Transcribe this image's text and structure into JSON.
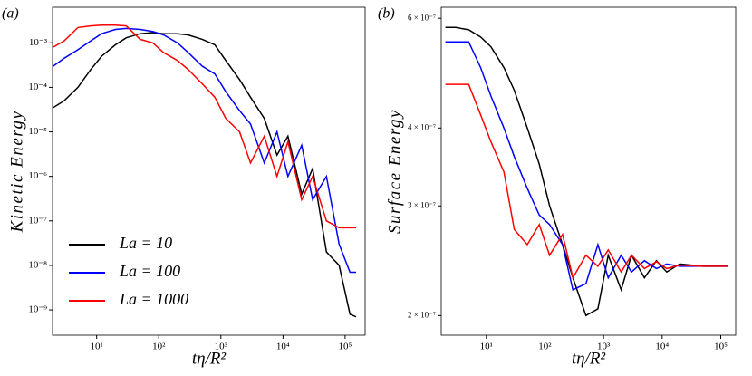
{
  "chart_data": [
    {
      "type": "line",
      "panel_label": "(a)",
      "x_label": "tη/R²",
      "y_label": "Kinetic Energy",
      "xscale": "log",
      "yscale": "log",
      "legend": "lower left",
      "xlim": [
        1.95,
        210000
      ],
      "ylim": [
        2.7e-10,
        0.0063
      ],
      "xticks": [
        {
          "value": 10,
          "label": "10¹"
        },
        {
          "value": 100,
          "label": "10²"
        },
        {
          "value": 1000,
          "label": "10³"
        },
        {
          "value": 10000,
          "label": "10⁴"
        },
        {
          "value": 100000,
          "label": "10⁵"
        }
      ],
      "yticks": [
        {
          "value": 1e-09,
          "label": "10⁻⁹"
        },
        {
          "value": 1e-08,
          "label": "10⁻⁸"
        },
        {
          "value": 1e-07,
          "label": "10⁻⁷"
        },
        {
          "value": 1e-06,
          "label": "10⁻⁶"
        },
        {
          "value": 1e-05,
          "label": "10⁻⁵"
        },
        {
          "value": 0.0001,
          "label": "10⁻⁴"
        },
        {
          "value": 0.001,
          "label": "10⁻³"
        }
      ],
      "x": [
        2,
        3,
        5,
        8,
        12,
        20,
        30,
        50,
        80,
        120,
        200,
        300,
        500,
        800,
        1200,
        2000,
        3000,
        5000,
        8000,
        12000,
        20000,
        30000,
        50000,
        80000,
        120000,
        150000
      ],
      "series": [
        {
          "name": "La = 10",
          "color": "#000000",
          "values": [
            3.5e-05,
            5e-05,
            0.0001,
            0.00025,
            0.0005,
            0.0009,
            0.0013,
            0.0016,
            0.0017,
            0.0016,
            0.0016,
            0.0015,
            0.0012,
            0.0009,
            0.0004,
            0.00015,
            6e-05,
            2e-05,
            3e-06,
            8e-06,
            4e-07,
            1.5e-06,
            2e-08,
            1e-08,
            8e-10,
            7e-10
          ]
        },
        {
          "name": "La = 100",
          "color": "#0000ff",
          "values": [
            0.0003,
            0.00045,
            0.0007,
            0.0011,
            0.0016,
            0.002,
            0.0021,
            0.002,
            0.0018,
            0.0015,
            0.001,
            0.0006,
            0.0003,
            0.0002,
            8e-05,
            3e-05,
            1.5e-05,
            2e-06,
            1e-05,
            1e-06,
            5e-06,
            3e-07,
            1e-06,
            3e-08,
            7e-09,
            7e-09
          ]
        },
        {
          "name": "La = 1000",
          "color": "#ff0000",
          "values": [
            0.0008,
            0.0011,
            0.0022,
            0.0024,
            0.0025,
            0.0025,
            0.0024,
            0.0012,
            0.001,
            0.0006,
            0.0004,
            0.00025,
            0.00012,
            6e-05,
            2e-05,
            1e-05,
            2e-06,
            8e-06,
            1e-06,
            6e-06,
            3e-07,
            1e-06,
            1e-07,
            7e-08,
            7e-08,
            7e-08
          ]
        }
      ]
    },
    {
      "type": "line",
      "panel_label": "(b)",
      "x_label": "tη/R²",
      "y_label": "Surface Energy",
      "xscale": "log",
      "yscale": "log",
      "xlim": [
        1.7,
        180000
      ],
      "ylim": [
        1.86e-07,
        6.25e-07
      ],
      "xticks": [
        {
          "value": 10,
          "label": "10¹"
        },
        {
          "value": 100,
          "label": "10²"
        },
        {
          "value": 1000,
          "label": "10³"
        },
        {
          "value": 10000,
          "label": "10⁴"
        },
        {
          "value": 100000,
          "label": "10⁵"
        }
      ],
      "yticks": [
        {
          "value": 2e-07,
          "label": "2 × 10⁻⁷"
        },
        {
          "value": 3e-07,
          "label": "3 × 10⁻⁷"
        },
        {
          "value": 4e-07,
          "label": "4 × 10⁻⁷"
        },
        {
          "value": 6e-07,
          "label": "6 × 10⁻⁷"
        }
      ],
      "x": [
        2,
        3,
        5,
        8,
        12,
        20,
        30,
        50,
        80,
        120,
        200,
        300,
        500,
        800,
        1200,
        2000,
        3000,
        5000,
        8000,
        12000,
        20000,
        50000,
        100000,
        130000
      ],
      "series": [
        {
          "color": "#000000",
          "values": [
            5.8e-07,
            5.8e-07,
            5.75e-07,
            5.6e-07,
            5.4e-07,
            5e-07,
            4.6e-07,
            4e-07,
            3.5e-07,
            3e-07,
            2.6e-07,
            2.3e-07,
            2e-07,
            2.05e-07,
            2.5e-07,
            2.2e-07,
            2.5e-07,
            2.3e-07,
            2.45e-07,
            2.35e-07,
            2.42e-07,
            2.4e-07,
            2.4e-07,
            2.4e-07
          ]
        },
        {
          "color": "#0000ff",
          "values": [
            5.5e-07,
            5.5e-07,
            5.5e-07,
            5e-07,
            4.5e-07,
            4e-07,
            3.6e-07,
            3.2e-07,
            2.9e-07,
            2.8e-07,
            2.6e-07,
            2.2e-07,
            2.25e-07,
            2.6e-07,
            2.3e-07,
            2.5e-07,
            2.35e-07,
            2.45e-07,
            2.38e-07,
            2.42e-07,
            2.4e-07,
            2.4e-07,
            2.4e-07,
            2.4e-07
          ]
        },
        {
          "color": "#ff0000",
          "values": [
            4.7e-07,
            4.7e-07,
            4.7e-07,
            4.2e-07,
            3.8e-07,
            3.4e-07,
            2.75e-07,
            2.6e-07,
            2.8e-07,
            2.5e-07,
            2.7e-07,
            2.3e-07,
            2.5e-07,
            2.4e-07,
            2.55e-07,
            2.35e-07,
            2.5e-07,
            2.38e-07,
            2.44e-07,
            2.38e-07,
            2.41e-07,
            2.4e-07,
            2.4e-07,
            2.4e-07
          ]
        }
      ]
    }
  ]
}
